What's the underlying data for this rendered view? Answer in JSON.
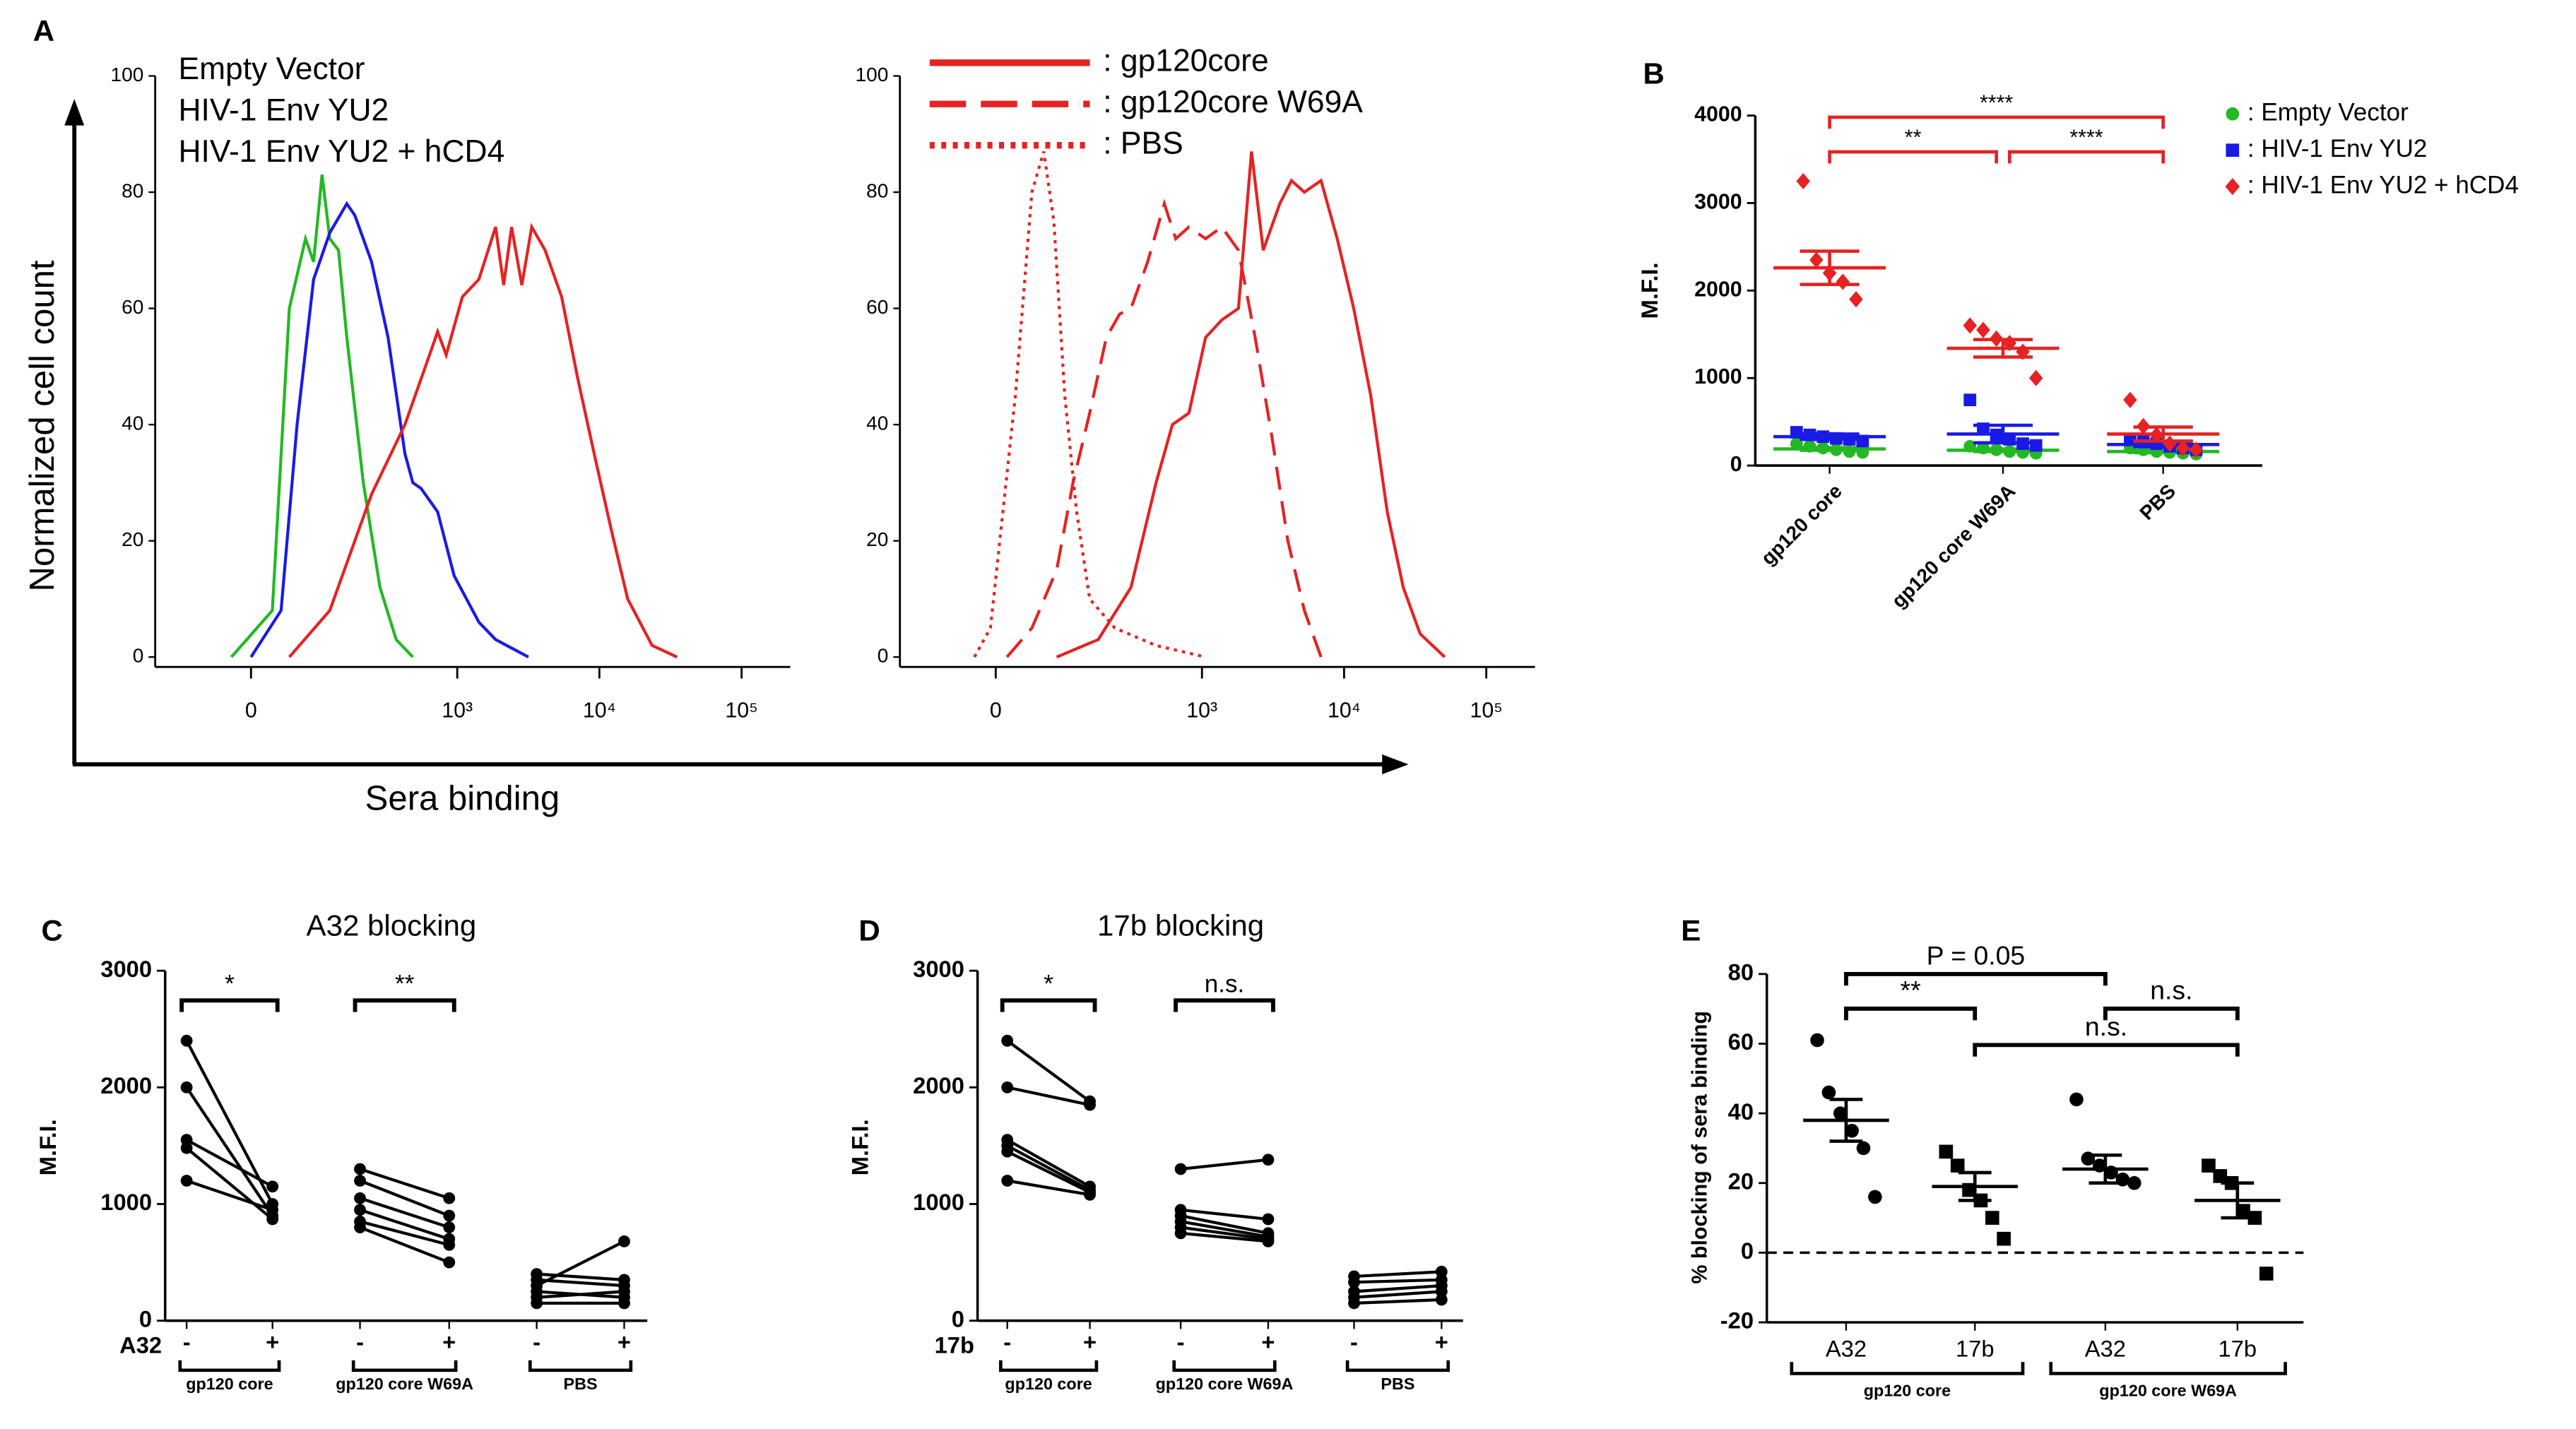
{
  "panels": [
    "A",
    "B",
    "C",
    "D",
    "E"
  ],
  "panel_a": {
    "ylabel": "Normalized cell count",
    "xlabel": "Sera binding"
  },
  "chart_data": [
    {
      "type": "line",
      "xscale": "biexponential",
      "xlim": [
        -160,
        220000
      ],
      "xticks": [
        0,
        {
          "value": 1000,
          "label": "10³"
        },
        {
          "value": 10000,
          "label": "10⁴"
        },
        {
          "value": 100000,
          "label": "10⁵"
        }
      ],
      "ylim": [
        0,
        100
      ],
      "yticks": [
        0,
        20,
        40,
        60,
        80,
        100
      ],
      "series": [
        {
          "name": "Empty Vector",
          "color": "#22b922",
          "style": "solid",
          "x": [
            -23,
            25,
            47,
            71,
            85,
            101,
            117,
            138,
            160,
            213,
            282,
            369,
            485
          ],
          "values": [
            0,
            8,
            60,
            72,
            68,
            83,
            72,
            70,
            55,
            30,
            12,
            3,
            0
          ]
        },
        {
          "name": "HIV-1 Env YU2",
          "color": "#1a1ae6",
          "style": "solid",
          "x": [
            0,
            36,
            58,
            85,
            117,
            160,
            184,
            245,
            323,
            426,
            485,
            555,
            727,
            951,
            1420,
            1860,
            3170
          ],
          "values": [
            0,
            8,
            40,
            65,
            73,
            78,
            76,
            68,
            55,
            35,
            30,
            29,
            25,
            14,
            6,
            3,
            0
          ]
        },
        {
          "name": "HIV-1 Env YU2 + hCD4",
          "color": "#e62222",
          "style": "solid",
          "x": [
            47,
            117,
            245,
            426,
            637,
            727,
            836,
            1087,
            1420,
            1860,
            2120,
            2416,
            2850,
            3340,
            4150,
            5420,
            7030,
            9200,
            12100,
            15800,
            23500,
            35200
          ],
          "values": [
            0,
            8,
            28,
            40,
            52,
            56,
            52,
            62,
            65,
            74,
            64,
            74,
            64,
            74,
            70,
            62,
            48,
            35,
            22,
            10,
            2,
            0
          ]
        }
      ]
    },
    {
      "type": "line",
      "xscale": "biexponential",
      "xlim": [
        -160,
        220000
      ],
      "xticks": [
        0,
        {
          "value": 1000,
          "label": "10³"
        },
        {
          "value": 10000,
          "label": "10⁴"
        },
        {
          "value": 100000,
          "label": "10⁵"
        }
      ],
      "ylim": [
        0,
        100
      ],
      "yticks": [
        0,
        20,
        40,
        60,
        80,
        100
      ],
      "series": [
        {
          "name": ": gp120core",
          "color": "#e62222",
          "style": "solid",
          "x": [
            82,
            180,
            313,
            473,
            618,
            810,
            1061,
            1378,
            1806,
            2230,
            2700,
            3530,
            4260,
            5260,
            6890,
            8950,
            11700,
            15400,
            20100,
            26100,
            34200,
            51000
          ],
          "values": [
            0,
            3,
            12,
            30,
            40,
            42,
            55,
            58,
            60,
            87,
            70,
            78,
            82,
            80,
            82,
            72,
            60,
            45,
            25,
            12,
            4,
            0
          ]
        },
        {
          "name": ": gp120core W69A",
          "color": "#e62222",
          "style": "dashed",
          "x": [
            13,
            44,
            82,
            114,
            155,
            207,
            259,
            313,
            412,
            542,
            653,
            810,
            1061,
            1378,
            1806,
            2365,
            3100,
            4020,
            5260,
            6890
          ],
          "values": [
            0,
            5,
            15,
            30,
            42,
            55,
            59,
            60,
            68,
            78,
            72,
            74,
            72,
            74,
            70,
            55,
            38,
            20,
            8,
            0
          ]
        },
        {
          "name": ": PBS",
          "color": "#e62222",
          "style": "dotted",
          "x": [
            -25,
            -6,
            23,
            44,
            61,
            77,
            97,
            122,
            155,
            239,
            473,
            1061
          ],
          "values": [
            0,
            5,
            45,
            80,
            87,
            75,
            45,
            25,
            10,
            5,
            2,
            0
          ]
        }
      ]
    },
    {
      "type": "dotplot",
      "ylabel": "M.F.I.",
      "categories": [
        "gp120 core",
        "gp120 core W69A",
        "PBS"
      ],
      "ylim": [
        0,
        4000
      ],
      "yticks": [
        0,
        1000,
        2000,
        3000,
        4000
      ],
      "series": [
        {
          "name": ": Empty Vector",
          "color": "#22b922",
          "marker": "circle",
          "values": [
            [
              250,
              220,
              200,
              180,
              160,
              150
            ],
            [
              220,
              200,
              180,
              160,
              150,
              140
            ],
            [
              200,
              180,
              160,
              150,
              140,
              130
            ]
          ],
          "means": [
            190,
            175,
            160
          ],
          "sems": [
            15,
            15,
            12
          ]
        },
        {
          "name": ": HIV-1 Env YU2",
          "color": "#1a1ae6",
          "marker": "square",
          "values": [
            [
              380,
              350,
              330,
              310,
              300,
              280
            ],
            [
              750,
              420,
              350,
              300,
              250,
              230
            ],
            [
              300,
              280,
              250,
              220,
              200,
              180
            ]
          ],
          "means": [
            330,
            360,
            240
          ],
          "sems": [
            30,
            100,
            25
          ]
        },
        {
          "name": ": HIV-1 Env YU2 + hCD4",
          "color": "#e62222",
          "marker": "diamond",
          "values": [
            [
              3250,
              2350,
              2200,
              2100,
              1900
            ],
            [
              1600,
              1550,
              1450,
              1400,
              1300,
              1000
            ],
            [
              750,
              450,
              350,
              250,
              200,
              180
            ]
          ],
          "means": [
            2260,
            1340,
            360
          ],
          "sems": [
            190,
            100,
            80
          ]
        }
      ],
      "comparisons": [
        {
          "groups": [
            0,
            2
          ],
          "label": "****"
        },
        {
          "groups": [
            0,
            1
          ],
          "label": "**"
        },
        {
          "groups": [
            1,
            2
          ],
          "label": "****"
        }
      ]
    },
    {
      "type": "paired",
      "title": "A32 blocking",
      "ylabel": "M.F.I.",
      "treatment": "A32",
      "conditions": [
        "-",
        "+"
      ],
      "ylim": [
        0,
        3000
      ],
      "yticks": [
        0,
        1000,
        2000,
        3000
      ],
      "groups": [
        {
          "label": "gp120 core",
          "before": [
            2400,
            2000,
            1550,
            1480,
            1200
          ],
          "after": [
            1000,
            900,
            1150,
            870,
            950
          ]
        },
        {
          "label": "gp120 core W69A",
          "before": [
            1300,
            1200,
            1050,
            950,
            850,
            800
          ],
          "after": [
            1050,
            900,
            800,
            700,
            650,
            500
          ]
        },
        {
          "label": "PBS",
          "before": [
            300,
            400,
            350,
            200,
            250,
            150
          ],
          "after": [
            680,
            350,
            300,
            250,
            200,
            150
          ]
        }
      ],
      "comparisons": [
        {
          "group": 0,
          "label": "*"
        },
        {
          "group": 1,
          "label": "**"
        }
      ]
    },
    {
      "type": "paired",
      "title": "17b blocking",
      "ylabel": "M.F.I.",
      "treatment": "17b",
      "conditions": [
        "-",
        "+"
      ],
      "ylim": [
        0,
        3000
      ],
      "yticks": [
        0,
        1000,
        2000,
        3000
      ],
      "groups": [
        {
          "label": "gp120 core",
          "before": [
            2400,
            2000,
            1550,
            1500,
            1450,
            1200
          ],
          "after": [
            1880,
            1850,
            1150,
            1120,
            1100,
            1080
          ]
        },
        {
          "label": "gp120 core W69A",
          "before": [
            1300,
            950,
            900,
            850,
            800,
            750
          ],
          "after": [
            1380,
            870,
            750,
            720,
            700,
            680
          ]
        },
        {
          "label": "PBS",
          "before": [
            380,
            330,
            250,
            200,
            150
          ],
          "after": [
            420,
            350,
            300,
            250,
            180
          ]
        }
      ],
      "comparisons": [
        {
          "group": 0,
          "label": "*"
        },
        {
          "group": 1,
          "label": "n.s."
        }
      ]
    },
    {
      "type": "strip",
      "ylabel": "% blocking of sera binding",
      "categories": [
        "A32",
        "17b",
        "A32",
        "17b"
      ],
      "markers": [
        "circle",
        "square",
        "circle",
        "square"
      ],
      "color": "#000000",
      "ylim": [
        -20,
        80
      ],
      "yticks": [
        -20,
        0,
        20,
        40,
        60,
        80
      ],
      "reference_line": 0,
      "values": [
        [
          61,
          46,
          40,
          35,
          30,
          16
        ],
        [
          29,
          25,
          18,
          15,
          10,
          4
        ],
        [
          44,
          27,
          25,
          23,
          21,
          20
        ],
        [
          25,
          22,
          20,
          12,
          10,
          -6
        ]
      ],
      "means": [
        38,
        19,
        24,
        15
      ],
      "sems": [
        6,
        4,
        4,
        5
      ],
      "group_labels": [
        {
          "label": "gp120 core",
          "categories": [
            0,
            1
          ]
        },
        {
          "label": "gp120 core W69A",
          "categories": [
            2,
            3
          ]
        }
      ],
      "comparisons": [
        {
          "groups": [
            0,
            2
          ],
          "label": "P = 0.05"
        },
        {
          "groups": [
            0,
            1
          ],
          "label": "**"
        },
        {
          "groups": [
            2,
            3
          ],
          "label": "n.s."
        },
        {
          "groups": [
            1,
            3
          ],
          "label": "n.s."
        }
      ]
    }
  ]
}
